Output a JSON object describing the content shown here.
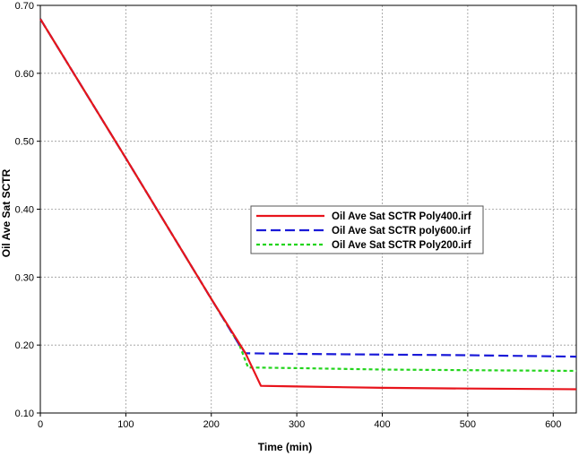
{
  "chart_data": {
    "type": "line",
    "title": "",
    "xlabel": "Time (min)",
    "ylabel": "Oil Ave Sat SCTR",
    "xlim": [
      0,
      627
    ],
    "ylim": [
      0.1,
      0.7
    ],
    "xticks": [
      0,
      100,
      200,
      300,
      400,
      500,
      600
    ],
    "yticks": [
      0.1,
      0.2,
      0.3,
      0.4,
      0.5,
      0.6,
      0.7
    ],
    "xtick_labels": [
      "0",
      "100",
      "200",
      "300",
      "400",
      "500",
      "600"
    ],
    "ytick_labels": [
      "0.10",
      "0.20",
      "0.30",
      "0.40",
      "0.50",
      "0.60",
      "0.70"
    ],
    "grid": true,
    "legend_position": "center-right",
    "series": [
      {
        "name": "Oil Ave Sat SCTR Poly400.irf",
        "color": "#e8141c",
        "dash": "solid",
        "x": [
          0,
          100,
          200,
          240,
          258,
          300,
          400,
          500,
          627
        ],
        "y": [
          0.68,
          0.475,
          0.268,
          0.188,
          0.14,
          0.139,
          0.137,
          0.136,
          0.135
        ]
      },
      {
        "name": "Oil Ave Sat SCTR poly600.irf",
        "color": "#1a1ad8",
        "dash": "dashed",
        "x": [
          0,
          100,
          200,
          233,
          240,
          300,
          400,
          500,
          627
        ],
        "y": [
          0.68,
          0.475,
          0.268,
          0.2,
          0.188,
          0.187,
          0.186,
          0.185,
          0.183
        ]
      },
      {
        "name": "Oil Ave Sat SCTR Poly200.irf",
        "color": "#22d41c",
        "dash": "dotted",
        "x": [
          0,
          100,
          200,
          233,
          243,
          300,
          400,
          500,
          627
        ],
        "y": [
          0.68,
          0.475,
          0.268,
          0.2,
          0.167,
          0.166,
          0.164,
          0.163,
          0.162
        ]
      }
    ]
  }
}
